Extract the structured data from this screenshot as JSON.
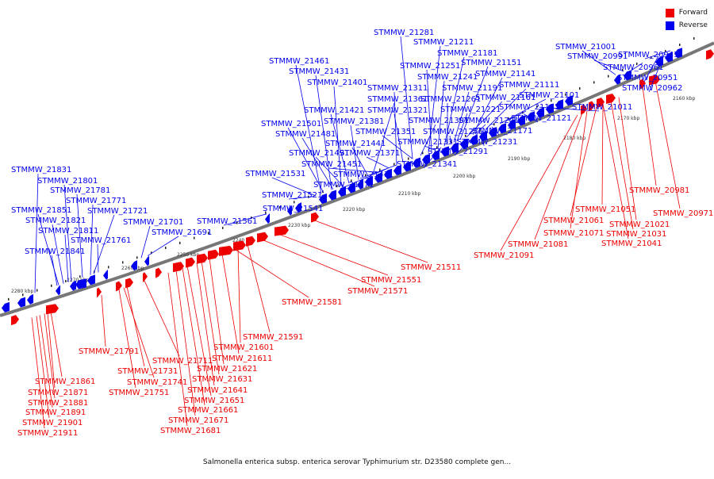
{
  "legend": {
    "forward_label": "Forward",
    "reverse_label": "Reverse",
    "forward_color": "#ee0000",
    "reverse_color": "#0000ee"
  },
  "caption": "Salmonella enterica subsp. enterica serovar Typhimurium str. D23580 complete gen...",
  "scale_labels": [
    "2160 kbp",
    "2170 kbp",
    "2180 kbp",
    "2190 kbp",
    "2200 kbp",
    "2210 kbp",
    "2220 kbp",
    "2230 kbp",
    "2240 kbp",
    "2250 kbp",
    "2260 kbp",
    "2270 kbp",
    "2280 kbp"
  ],
  "reverse_gene_labels": [
    "STMMW_21281",
    "STMMW_21211",
    "STMMW_21181",
    "STMMW_21151",
    "STMMW_21141",
    "STMMW_21111",
    "STMMW_21101",
    "STMMW_21131",
    "STMMW_21011",
    "STMMW_21121",
    "STMMW_21001",
    "STMMW_20991",
    "STMMW_20961",
    "STMMW_20941",
    "STMMW_20951",
    "STMMW_20962",
    "STMMW_21461",
    "STMMW_21431",
    "STMMW_21401",
    "STMMW_21361",
    "STMMW_21421",
    "STMMW_21381",
    "STMMW_21501",
    "STMMW_21481",
    "STMMW_21441",
    "STMMW_21491",
    "STMMW_21451",
    "STMMW_21531",
    "STMMW_21471",
    "STMMW_21521",
    "STMMW_21541",
    "STMMW_21561",
    "STMMW_21311",
    "STMMW_21321",
    "STMMW_21301",
    "STMMW_21351",
    "STMMW_21331",
    "STMMW_21371",
    "STMMW_21341",
    "STMMW_21411",
    "STMMW_21251",
    "STMMW_21241",
    "STMMW_21261",
    "STMMW_21191",
    "STMMW_21161",
    "STMMW_21221",
    "STMMW_21201",
    "STMMW_21271",
    "STMMW_21171",
    "STMMW_21231",
    "STMMW_21291",
    "STMMW_21831",
    "STMMW_21801",
    "STMMW_21781",
    "STMMW_21771",
    "STMMW_21851",
    "STMMW_21721",
    "STMMW_21821",
    "STMMW_21701",
    "STMMW_21811",
    "STMMW_21691",
    "STMMW_21761",
    "STMMW_21841"
  ],
  "forward_gene_labels": [
    "STMMW_20981",
    "STMMW_20971",
    "STMMW_21051",
    "STMMW_21061",
    "STMMW_21021",
    "STMMW_21031",
    "STMMW_21041",
    "STMMW_21071",
    "STMMW_21081",
    "STMMW_21091",
    "STMMW_21511",
    "STMMW_21551",
    "STMMW_21571",
    "STMMW_21581",
    "STMMW_21591",
    "STMMW_21601",
    "STMMW_21611",
    "STMMW_21621",
    "STMMW_21631",
    "STMMW_21641",
    "STMMW_21651",
    "STMMW_21661",
    "STMMW_21671",
    "STMMW_21681",
    "STMMW_21791",
    "STMMW_21711",
    "STMMW_21731",
    "STMMW_21741",
    "STMMW_21751",
    "STMMW_21861",
    "STMMW_21871",
    "STMMW_21881",
    "STMMW_21891",
    "STMMW_21901",
    "STMMW_21911"
  ]
}
